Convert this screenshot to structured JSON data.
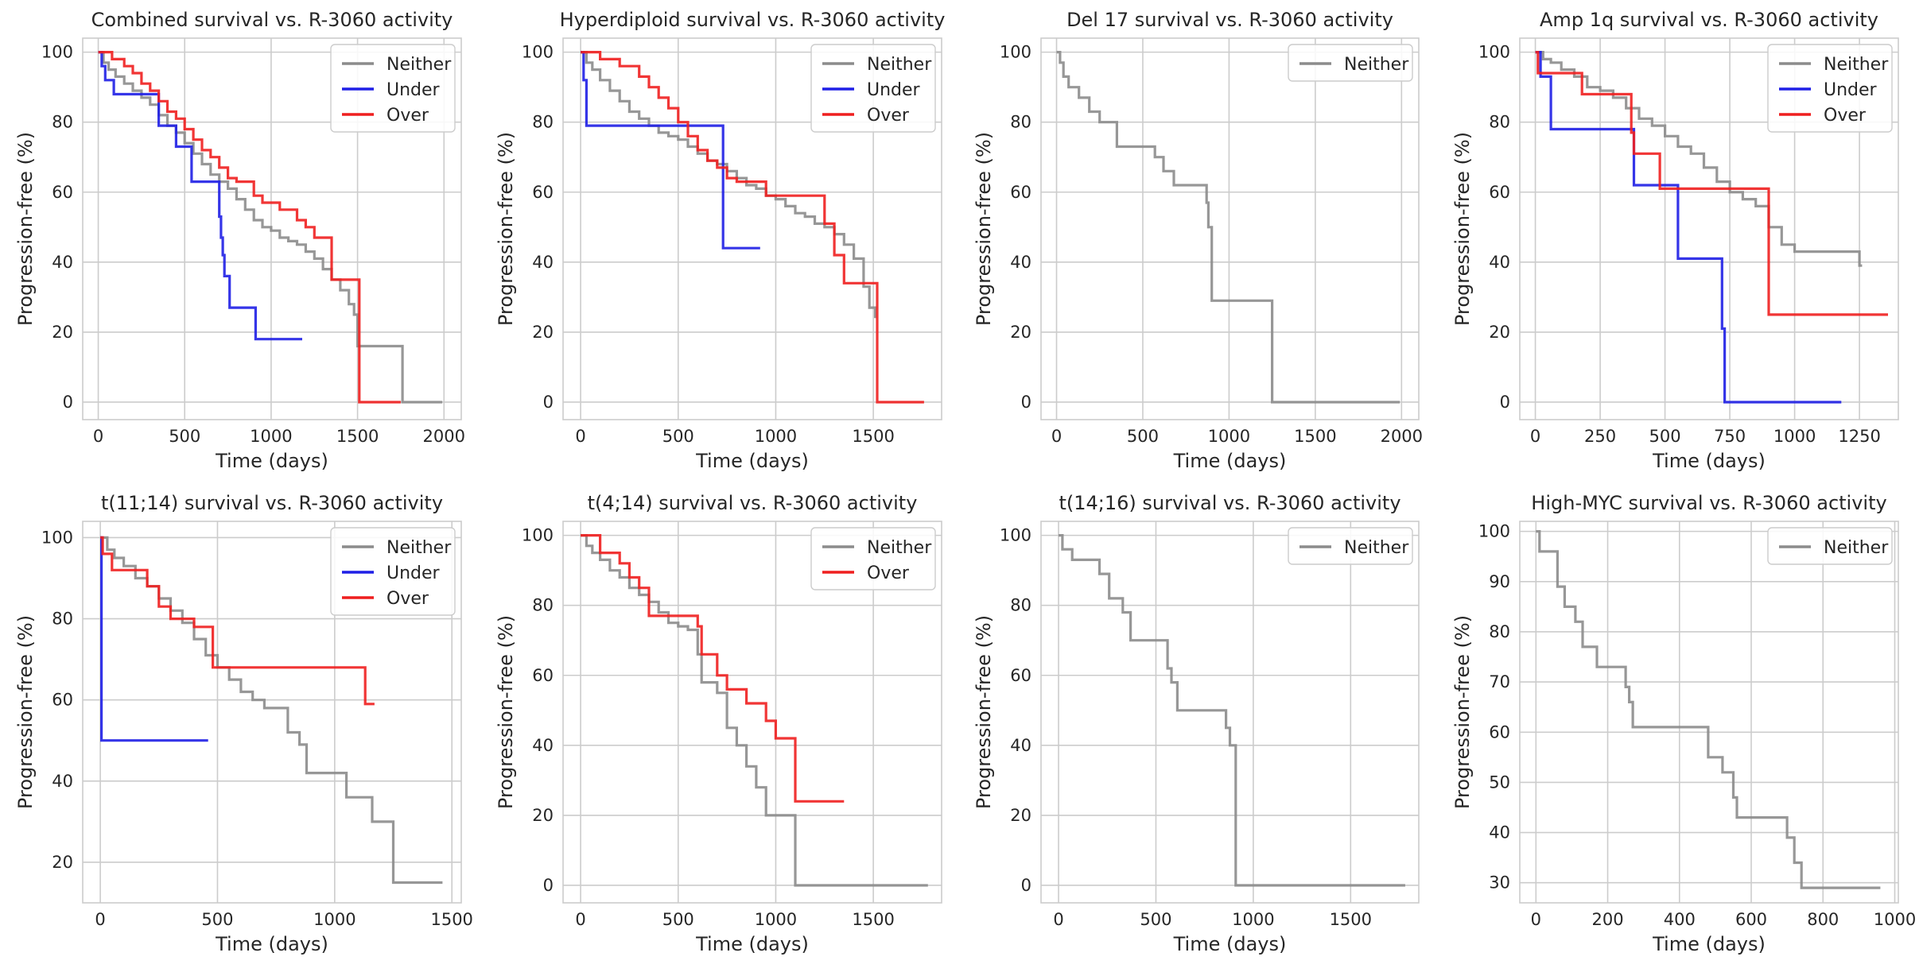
{
  "colors": {
    "Neither": "#8c8c8c",
    "Under": "#1f1fe6",
    "Over": "#ef1f1f"
  },
  "chart_data": [
    {
      "type": "line",
      "title": "Combined survival vs. R-3060 activity",
      "xlabel": "Time (days)",
      "ylabel": "Progression-free (%)",
      "xlim": [
        -90,
        2100
      ],
      "ylim": [
        -5,
        104
      ],
      "xticks": [
        0,
        500,
        1000,
        1500,
        2000
      ],
      "yticks": [
        0,
        20,
        40,
        60,
        80,
        100
      ],
      "grid": true,
      "legend": "top-right",
      "series": [
        {
          "name": "Neither",
          "x": [
            0,
            30,
            60,
            100,
            150,
            200,
            250,
            300,
            350,
            400,
            450,
            500,
            550,
            600,
            650,
            700,
            750,
            800,
            850,
            900,
            950,
            1000,
            1050,
            1100,
            1150,
            1200,
            1250,
            1300,
            1350,
            1400,
            1450,
            1480,
            1500,
            1520,
            1760,
            1990
          ],
          "y": [
            100,
            97,
            95,
            93,
            91,
            89,
            87,
            85,
            82,
            79,
            77,
            74,
            71,
            68,
            65,
            63,
            61,
            58,
            55,
            52,
            50,
            49,
            47,
            46,
            45,
            43,
            41,
            38,
            35,
            32,
            28,
            25,
            16,
            16,
            0,
            0
          ]
        },
        {
          "name": "Under",
          "x": [
            0,
            20,
            40,
            90,
            350,
            450,
            540,
            580,
            700,
            710,
            720,
            730,
            760,
            910,
            1180
          ],
          "y": [
            100,
            96,
            92,
            88,
            79,
            73,
            63,
            63,
            53,
            47,
            42,
            36,
            27,
            18,
            18
          ]
        },
        {
          "name": "Over",
          "x": [
            0,
            80,
            150,
            200,
            250,
            300,
            350,
            400,
            450,
            500,
            550,
            600,
            650,
            700,
            750,
            800,
            900,
            950,
            1050,
            1150,
            1200,
            1250,
            1350,
            1500,
            1510,
            1750
          ],
          "y": [
            100,
            98,
            96,
            94,
            91,
            89,
            86,
            83,
            81,
            78,
            75,
            72,
            70,
            67,
            64,
            63,
            59,
            57,
            55,
            52,
            50,
            47,
            35,
            35,
            0,
            0
          ]
        }
      ]
    },
    {
      "type": "line",
      "title": "Hyperdiploid survival vs. R-3060 activity",
      "xlabel": "Time (days)",
      "ylabel": "Progression-free (%)",
      "xlim": [
        -90,
        1850
      ],
      "ylim": [
        -5,
        104
      ],
      "xticks": [
        0,
        500,
        1000,
        1500
      ],
      "yticks": [
        0,
        20,
        40,
        60,
        80,
        100
      ],
      "grid": true,
      "legend": "top-right",
      "series": [
        {
          "name": "Neither",
          "x": [
            0,
            30,
            60,
            100,
            150,
            200,
            250,
            300,
            350,
            400,
            450,
            500,
            550,
            600,
            650,
            700,
            750,
            800,
            850,
            900,
            950,
            1000,
            1050,
            1100,
            1150,
            1200,
            1250,
            1300,
            1350,
            1400,
            1450,
            1480,
            1510
          ],
          "y": [
            100,
            97,
            95,
            92,
            89,
            86,
            83,
            81,
            79,
            77,
            76,
            75,
            73,
            71,
            69,
            68,
            66,
            64,
            62,
            61,
            59,
            58,
            56,
            54,
            53,
            51,
            50,
            48,
            45,
            41,
            33,
            27,
            24
          ]
        },
        {
          "name": "Under",
          "x": [
            0,
            15,
            30,
            710,
            730,
            920
          ],
          "y": [
            100,
            92,
            79,
            79,
            44,
            44
          ]
        },
        {
          "name": "Over",
          "x": [
            0,
            100,
            200,
            300,
            350,
            400,
            450,
            500,
            550,
            600,
            650,
            700,
            750,
            800,
            950,
            1250,
            1300,
            1350,
            1520,
            1760
          ],
          "y": [
            100,
            98,
            96,
            93,
            90,
            87,
            84,
            80,
            76,
            72,
            69,
            67,
            64,
            63,
            59,
            51,
            42,
            34,
            0,
            0
          ]
        }
      ]
    },
    {
      "type": "line",
      "title": "Del 17 survival vs. R-3060 activity",
      "xlabel": "Time (days)",
      "ylabel": "Progression-free (%)",
      "xlim": [
        -90,
        2100
      ],
      "ylim": [
        -5,
        104
      ],
      "xticks": [
        0,
        500,
        1000,
        1500,
        2000
      ],
      "yticks": [
        0,
        20,
        40,
        60,
        80,
        100
      ],
      "grid": true,
      "legend": "top-right",
      "series": [
        {
          "name": "Neither",
          "x": [
            0,
            20,
            40,
            70,
            130,
            190,
            250,
            350,
            570,
            620,
            680,
            870,
            880,
            900,
            1250,
            1990
          ],
          "y": [
            100,
            97,
            93,
            90,
            87,
            83,
            80,
            73,
            70,
            66,
            62,
            57,
            50,
            29,
            0,
            0
          ]
        }
      ]
    },
    {
      "type": "line",
      "title": "Amp 1q survival vs. R-3060 activity",
      "xlabel": "Time (days)",
      "ylabel": "Progression-free (%)",
      "xlim": [
        -60,
        1400
      ],
      "ylim": [
        -5,
        104
      ],
      "xticks": [
        0,
        250,
        500,
        750,
        1000,
        1250
      ],
      "yticks": [
        0,
        20,
        40,
        60,
        80,
        100
      ],
      "grid": true,
      "legend": "top-right",
      "series": [
        {
          "name": "Neither",
          "x": [
            0,
            30,
            60,
            100,
            150,
            200,
            250,
            300,
            350,
            400,
            450,
            500,
            550,
            600,
            650,
            700,
            750,
            800,
            850,
            900,
            950,
            1000,
            1050,
            1100,
            1250,
            1260
          ],
          "y": [
            100,
            98,
            97,
            95,
            93,
            90,
            89,
            87,
            84,
            81,
            79,
            76,
            73,
            71,
            67,
            63,
            60,
            58,
            56,
            50,
            45,
            43,
            43,
            43,
            39,
            39
          ]
        },
        {
          "name": "Under",
          "x": [
            0,
            20,
            60,
            370,
            380,
            550,
            720,
            730,
            1180
          ],
          "y": [
            100,
            93,
            78,
            78,
            62,
            41,
            21,
            0,
            0
          ]
        },
        {
          "name": "Over",
          "x": [
            0,
            10,
            180,
            370,
            380,
            480,
            900,
            1360
          ],
          "y": [
            100,
            94,
            88,
            77,
            71,
            61,
            25,
            25
          ]
        }
      ]
    },
    {
      "type": "line",
      "title": "t(11;14) survival vs. R-3060 activity",
      "xlabel": "Time (days)",
      "ylabel": "Progression-free (%)",
      "xlim": [
        -75,
        1540
      ],
      "ylim": [
        10,
        104
      ],
      "xticks": [
        0,
        500,
        1000,
        1500
      ],
      "yticks": [
        20,
        40,
        60,
        80,
        100
      ],
      "grid": true,
      "legend": "top-right",
      "series": [
        {
          "name": "Neither",
          "x": [
            0,
            30,
            60,
            100,
            150,
            200,
            250,
            300,
            350,
            400,
            450,
            500,
            550,
            600,
            650,
            700,
            800,
            850,
            880,
            1050,
            1160,
            1250,
            1460
          ],
          "y": [
            100,
            97,
            95,
            93,
            90,
            88,
            85,
            82,
            79,
            75,
            71,
            68,
            65,
            62,
            60,
            58,
            52,
            49,
            42,
            36,
            30,
            15,
            15
          ]
        },
        {
          "name": "Under",
          "x": [
            0,
            5,
            460
          ],
          "y": [
            100,
            50,
            50
          ]
        },
        {
          "name": "Over",
          "x": [
            0,
            10,
            50,
            200,
            250,
            300,
            400,
            480,
            1130,
            1170
          ],
          "y": [
            100,
            96,
            92,
            88,
            83,
            80,
            78,
            68,
            59,
            59
          ]
        }
      ]
    },
    {
      "type": "line",
      "title": "t(4;14) survival vs. R-3060 activity",
      "xlabel": "Time (days)",
      "ylabel": "Progression-free (%)",
      "xlim": [
        -90,
        1850
      ],
      "ylim": [
        -5,
        104
      ],
      "xticks": [
        0,
        500,
        1000,
        1500
      ],
      "yticks": [
        0,
        20,
        40,
        60,
        80,
        100
      ],
      "grid": true,
      "legend": "top-right",
      "series": [
        {
          "name": "Neither",
          "x": [
            0,
            30,
            60,
            100,
            150,
            200,
            250,
            300,
            350,
            400,
            450,
            500,
            550,
            600,
            620,
            700,
            750,
            800,
            850,
            900,
            950,
            1100,
            1780
          ],
          "y": [
            100,
            97,
            95,
            93,
            90,
            88,
            85,
            83,
            81,
            78,
            75,
            74,
            73,
            66,
            58,
            55,
            45,
            40,
            34,
            28,
            20,
            0,
            0
          ]
        },
        {
          "name": "Over",
          "x": [
            0,
            100,
            200,
            250,
            300,
            350,
            600,
            620,
            700,
            750,
            850,
            950,
            1000,
            1100,
            1350
          ],
          "y": [
            100,
            95,
            92,
            88,
            85,
            77,
            74,
            66,
            60,
            56,
            52,
            47,
            42,
            24,
            24
          ]
        }
      ]
    },
    {
      "type": "line",
      "title": "t(14;16) survival vs. R-3060 activity",
      "xlabel": "Time (days)",
      "ylabel": "Progression-free (%)",
      "xlim": [
        -90,
        1850
      ],
      "ylim": [
        -5,
        104
      ],
      "xticks": [
        0,
        500,
        1000,
        1500
      ],
      "yticks": [
        0,
        20,
        40,
        60,
        80,
        100
      ],
      "grid": true,
      "legend": "top-right",
      "series": [
        {
          "name": "Neither",
          "x": [
            0,
            20,
            70,
            210,
            260,
            330,
            370,
            560,
            580,
            610,
            860,
            880,
            910,
            1780
          ],
          "y": [
            100,
            96,
            93,
            89,
            82,
            78,
            70,
            62,
            58,
            50,
            45,
            40,
            0,
            0
          ]
        }
      ]
    },
    {
      "type": "line",
      "title": "High-MYC survival vs. R-3060 activity",
      "xlabel": "Time (days)",
      "ylabel": "Progression-free (%)",
      "xlim": [
        -45,
        1010
      ],
      "ylim": [
        26,
        102
      ],
      "xticks": [
        0,
        200,
        400,
        600,
        800,
        1000
      ],
      "yticks": [
        30,
        40,
        50,
        60,
        70,
        80,
        90,
        100
      ],
      "grid": true,
      "legend": "top-right",
      "series": [
        {
          "name": "Neither",
          "x": [
            0,
            10,
            60,
            80,
            110,
            130,
            170,
            250,
            260,
            270,
            480,
            520,
            550,
            560,
            700,
            720,
            740,
            960
          ],
          "y": [
            100,
            96,
            89,
            85,
            82,
            77,
            73,
            69,
            66,
            61,
            55,
            52,
            47,
            43,
            39,
            34,
            29,
            29
          ]
        }
      ]
    }
  ]
}
